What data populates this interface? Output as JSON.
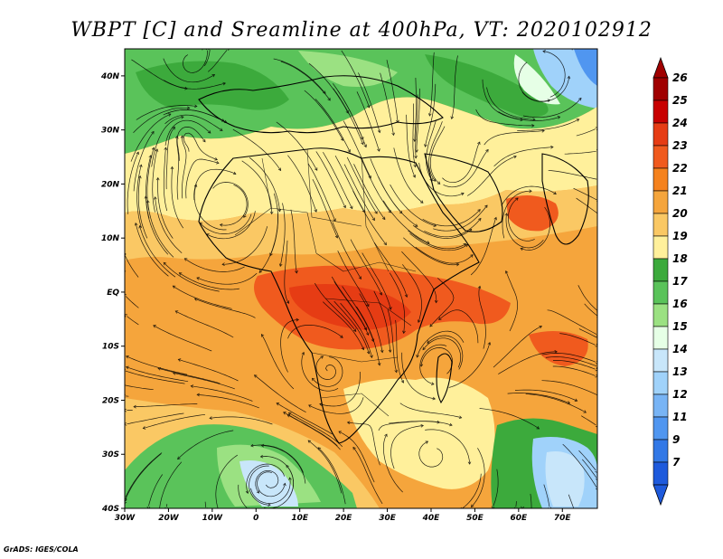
{
  "title": "WBPT [C] and Sreamline at 400hPa, VT: 2020102912",
  "credit": "GrADS: IGES/COLA",
  "map": {
    "lon_range": [
      -30,
      78
    ],
    "lat_range": [
      -40,
      45
    ],
    "lon_ticks": [
      {
        "value": -30,
        "label": "30W"
      },
      {
        "value": -20,
        "label": "20W"
      },
      {
        "value": -10,
        "label": "10W"
      },
      {
        "value": 0,
        "label": "0"
      },
      {
        "value": 10,
        "label": "10E"
      },
      {
        "value": 20,
        "label": "20E"
      },
      {
        "value": 30,
        "label": "30E"
      },
      {
        "value": 40,
        "label": "40E"
      },
      {
        "value": 50,
        "label": "50E"
      },
      {
        "value": 60,
        "label": "60E"
      },
      {
        "value": 70,
        "label": "70E"
      }
    ],
    "lat_ticks": [
      {
        "value": 40,
        "label": "40N"
      },
      {
        "value": 30,
        "label": "30N"
      },
      {
        "value": 20,
        "label": "20N"
      },
      {
        "value": 10,
        "label": "10N"
      },
      {
        "value": 0,
        "label": "EQ"
      },
      {
        "value": -10,
        "label": "10S"
      },
      {
        "value": -20,
        "label": "20S"
      },
      {
        "value": -30,
        "label": "30S"
      },
      {
        "value": -40,
        "label": "40S"
      }
    ]
  },
  "colorbar": {
    "levels": [
      {
        "label": "26",
        "color": "#a00000"
      },
      {
        "label": "25",
        "color": "#c80000"
      },
      {
        "label": "24",
        "color": "#e63c14"
      },
      {
        "label": "23",
        "color": "#f05a1e"
      },
      {
        "label": "22",
        "color": "#f5821e"
      },
      {
        "label": "21",
        "color": "#f5a53c"
      },
      {
        "label": "20",
        "color": "#fac864"
      },
      {
        "label": "19",
        "color": "#fff09b"
      },
      {
        "label": "18",
        "color": "#3caa3c"
      },
      {
        "label": "17",
        "color": "#5ac35a"
      },
      {
        "label": "16",
        "color": "#9be182"
      },
      {
        "label": "15",
        "color": "#e6ffe6"
      },
      {
        "label": "14",
        "color": "#c8e6fa"
      },
      {
        "label": "13",
        "color": "#a0d2fa"
      },
      {
        "label": "12",
        "color": "#78b4f5"
      },
      {
        "label": "11",
        "color": "#5096f0"
      },
      {
        "label": "9",
        "color": "#3278e6"
      },
      {
        "label": "7",
        "color": "#1e5adc"
      }
    ]
  }
}
